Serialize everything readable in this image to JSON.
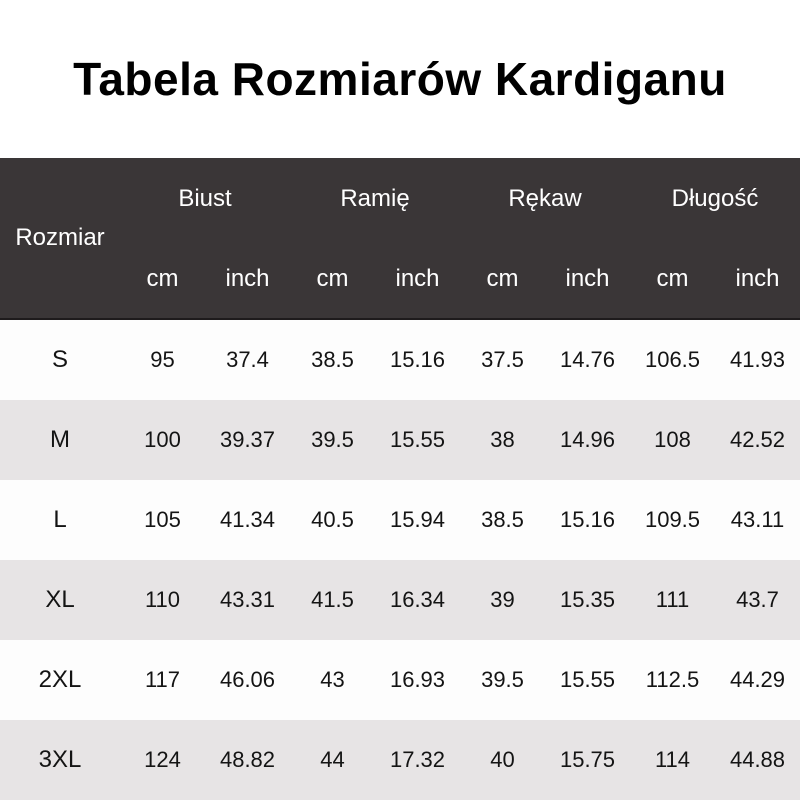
{
  "colors": {
    "page_bg": "#ffffff",
    "title_text": "#000000",
    "header_bg": "#3a3637",
    "header_text": "#ffffff",
    "header_border": "#1e1b1c",
    "row_bg": "#fdfdfd",
    "row_alt_bg": "#e7e4e5",
    "body_text": "#141414"
  },
  "chart_data": {
    "type": "table",
    "title": "Tabela Rozmiarów Kardiganu",
    "corner_label": "Rozmiar",
    "groups": [
      "Biust",
      "Ramię",
      "Rękaw",
      "Długość"
    ],
    "units": [
      "cm",
      "inch",
      "cm",
      "inch",
      "cm",
      "inch",
      "cm",
      "inch"
    ],
    "rows": [
      {
        "size": "S",
        "values": [
          "95",
          "37.4",
          "38.5",
          "15.16",
          "37.5",
          "14.76",
          "106.5",
          "41.93"
        ]
      },
      {
        "size": "M",
        "values": [
          "100",
          "39.37",
          "39.5",
          "15.55",
          "38",
          "14.96",
          "108",
          "42.52"
        ]
      },
      {
        "size": "L",
        "values": [
          "105",
          "41.34",
          "40.5",
          "15.94",
          "38.5",
          "15.16",
          "109.5",
          "43.11"
        ]
      },
      {
        "size": "XL",
        "values": [
          "110",
          "43.31",
          "41.5",
          "16.34",
          "39",
          "15.35",
          "111",
          "43.7"
        ]
      },
      {
        "size": "2XL",
        "values": [
          "117",
          "46.06",
          "43",
          "16.93",
          "39.5",
          "15.55",
          "112.5",
          "44.29"
        ]
      },
      {
        "size": "3XL",
        "values": [
          "124",
          "48.82",
          "44",
          "17.32",
          "40",
          "15.75",
          "114",
          "44.88"
        ]
      }
    ]
  }
}
